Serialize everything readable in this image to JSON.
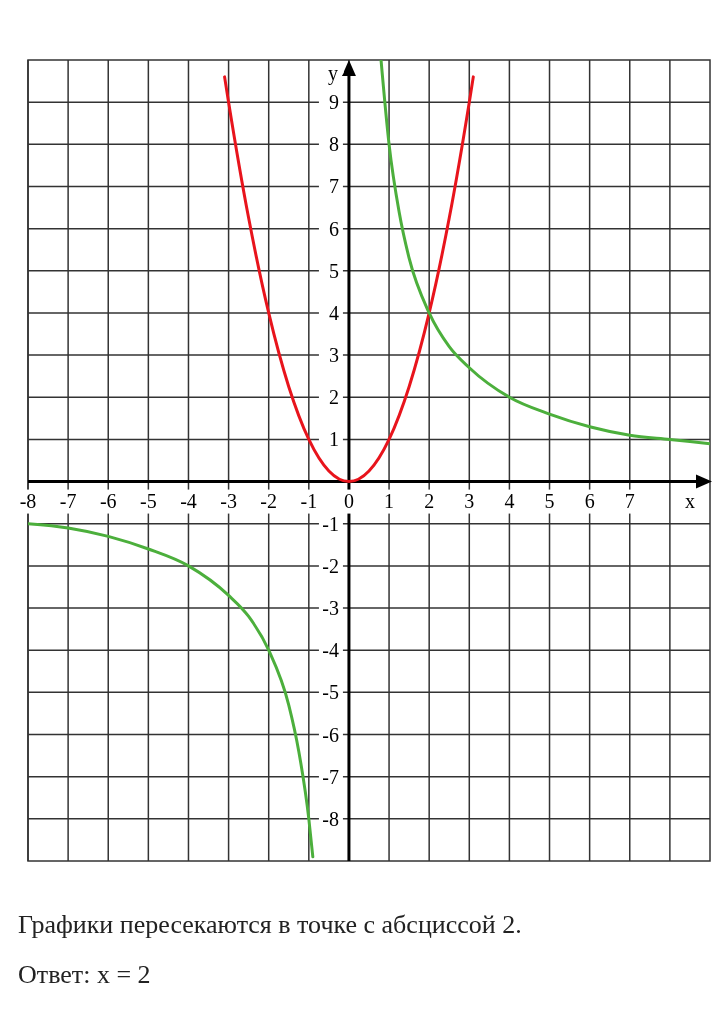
{
  "chart_data": {
    "type": "line",
    "xlabel": "x",
    "ylabel": "y",
    "xlim": [
      -8,
      9
    ],
    "ylim": [
      -9,
      10
    ],
    "xticks": [
      -8,
      -7,
      -6,
      -5,
      -4,
      -3,
      -2,
      -1,
      0,
      1,
      2,
      3,
      4,
      5,
      6,
      7,
      {
        "value": 8,
        "label": null
      }
    ],
    "yticks": [
      -8,
      -7,
      -6,
      -5,
      -4,
      -3,
      -2,
      -1,
      1,
      2,
      3,
      4,
      5,
      6,
      7,
      8,
      9
    ],
    "grid": true,
    "marker": "none",
    "line_style": "solid",
    "series": [
      {
        "color": "#e8141c",
        "x": [
          -3.1,
          -3,
          -2.5,
          -2,
          -1.5,
          -1,
          -0.5,
          0,
          0.5,
          1,
          1.5,
          2,
          2.5,
          3,
          3.1
        ],
        "values": [
          9.6,
          9,
          6.25,
          4,
          2.25,
          1,
          0.25,
          0,
          0.25,
          1,
          2.25,
          4,
          6.25,
          9,
          9.6
        ]
      },
      {
        "color": "#4caf3c",
        "x": [
          0.8,
          1,
          1.25,
          1.5,
          2,
          2.5,
          3,
          4,
          5,
          6,
          7,
          8,
          9
        ],
        "values": [
          10,
          8,
          6.4,
          5.3,
          4,
          3.2,
          2.7,
          2,
          1.6,
          1.3,
          1.1,
          1,
          0.9
        ]
      },
      {
        "color": "#4caf3c",
        "x": [
          -8,
          -7,
          -6,
          -5,
          -4,
          -3,
          -2.5,
          -2,
          -1.5,
          -1.25,
          -1,
          -0.9
        ],
        "values": [
          -1,
          -1.1,
          -1.3,
          -1.6,
          -2,
          -2.7,
          -3.2,
          -4,
          -5.3,
          -6.4,
          -8,
          -8.9
        ]
      }
    ],
    "annotations": [
      "Графики пересекаются в точке с абсциссой 2.",
      "Ответ: x = 2"
    ]
  }
}
